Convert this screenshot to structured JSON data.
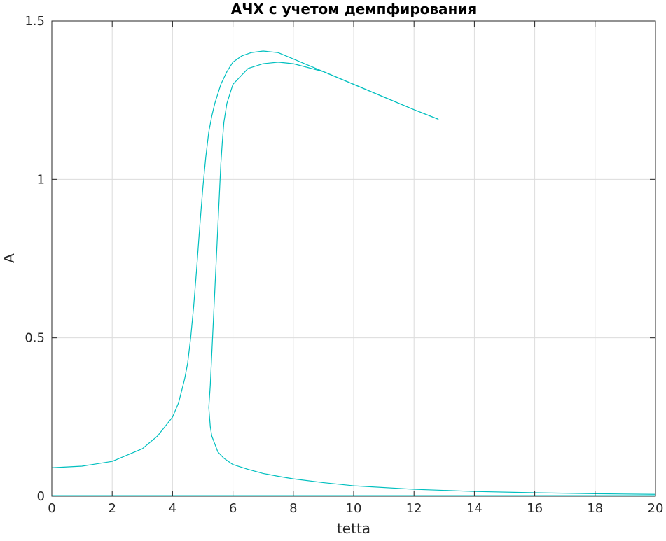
{
  "chart_data": {
    "type": "line",
    "title": "АЧХ с учетом демпфирования",
    "xlabel": "tetta",
    "ylabel": "A",
    "xlim": [
      0,
      20
    ],
    "ylim": [
      0,
      1.5
    ],
    "x_ticks": [
      0,
      2,
      4,
      6,
      8,
      10,
      12,
      14,
      16,
      18,
      20
    ],
    "y_ticks": [
      0,
      0.5,
      1,
      1.5
    ],
    "x_tick_labels": [
      "0",
      "2",
      "4",
      "6",
      "8",
      "10",
      "12",
      "14",
      "16",
      "18",
      "20"
    ],
    "y_tick_labels": [
      "0",
      "0.5",
      "1",
      "1.5"
    ],
    "grid": true,
    "color": "#00bfbf",
    "series": [
      {
        "x": [
          0,
          1,
          2,
          3,
          3.5,
          4,
          4.2,
          4.4,
          4.5,
          4.6,
          4.7,
          4.8,
          4.9,
          5.0,
          5.1,
          5.2,
          5.3,
          5.4,
          5.5,
          5.6,
          5.8,
          6.0,
          6.3,
          6.6,
          7.0,
          7.5,
          8.0,
          9.0,
          10.0,
          11.0,
          12.0,
          12.8
        ],
        "y": [
          0.09,
          0.095,
          0.11,
          0.15,
          0.19,
          0.25,
          0.295,
          0.37,
          0.42,
          0.5,
          0.6,
          0.72,
          0.85,
          0.97,
          1.07,
          1.15,
          1.2,
          1.24,
          1.27,
          1.3,
          1.34,
          1.37,
          1.39,
          1.4,
          1.405,
          1.4,
          1.38,
          1.34,
          1.3,
          1.26,
          1.22,
          1.19
        ]
      },
      {
        "x": [
          12.8,
          12.0,
          11.0,
          10.0,
          9.0,
          8.0,
          7.5,
          7.0,
          6.5,
          6.2,
          6.0,
          5.9,
          5.8,
          5.7,
          5.65,
          5.6,
          5.55,
          5.5,
          5.45,
          5.4,
          5.35,
          5.3,
          5.25,
          5.2,
          5.25,
          5.3,
          5.4,
          5.5,
          5.7,
          6.0,
          6.5,
          7.0,
          7.5,
          8.0,
          9.0,
          10.0,
          12.0,
          14.0,
          16.0,
          18.0,
          20.0
        ],
        "y": [
          1.19,
          1.22,
          1.26,
          1.3,
          1.34,
          1.365,
          1.37,
          1.365,
          1.35,
          1.32,
          1.3,
          1.27,
          1.24,
          1.18,
          1.12,
          1.05,
          0.95,
          0.85,
          0.75,
          0.65,
          0.55,
          0.45,
          0.35,
          0.28,
          0.22,
          0.19,
          0.165,
          0.14,
          0.12,
          0.1,
          0.085,
          0.072,
          0.063,
          0.055,
          0.043,
          0.033,
          0.022,
          0.015,
          0.011,
          0.008,
          0.006
        ]
      },
      {
        "x": [
          0,
          20
        ],
        "y": [
          0.002,
          0.002
        ]
      }
    ]
  }
}
